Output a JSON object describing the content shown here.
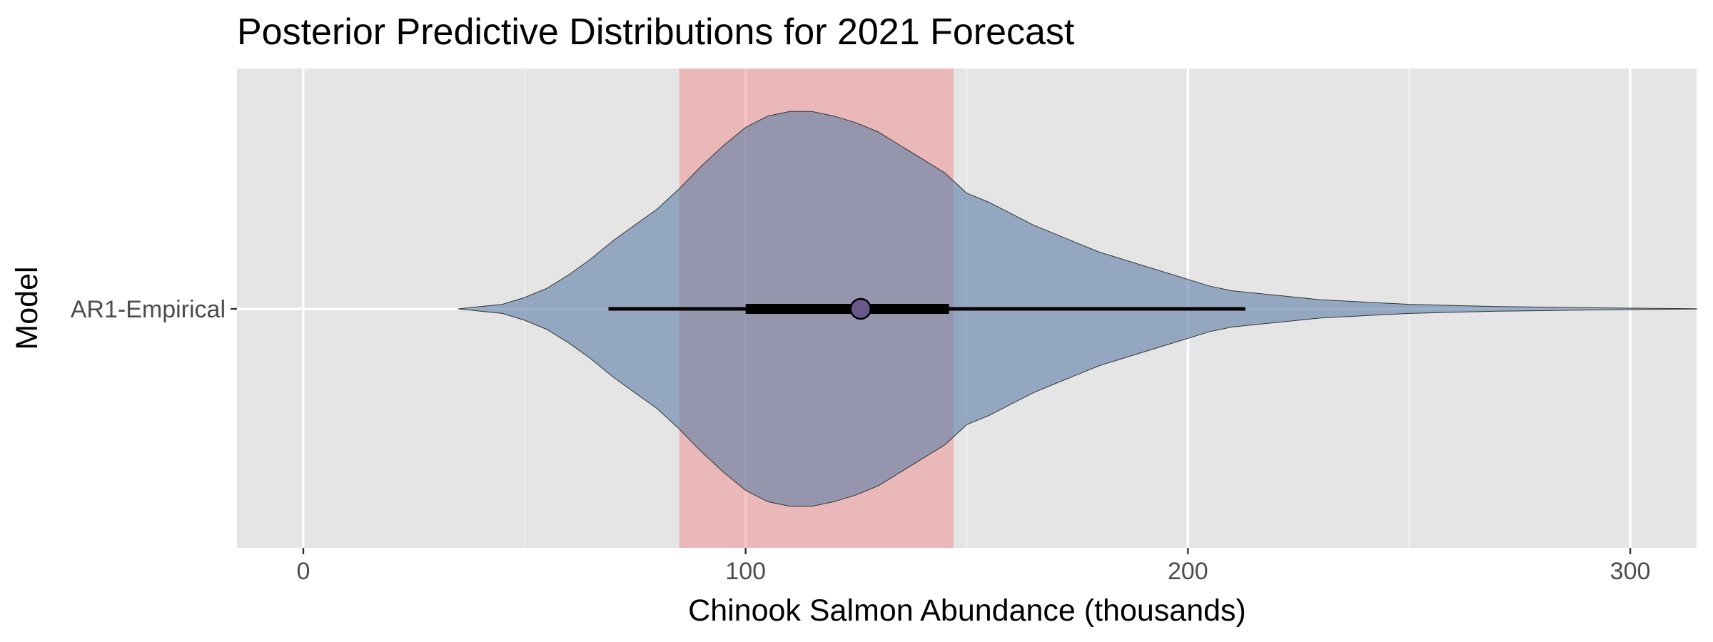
{
  "chart_data": {
    "type": "violin",
    "title": "Posterior Predictive Distributions for 2021 Forecast",
    "xlabel": "Chinook Salmon Abundance (thousands)",
    "ylabel": "Model",
    "xlim": [
      -15,
      315
    ],
    "x_ticks": [
      0,
      100,
      200,
      300
    ],
    "x_tick_labels": [
      "0",
      "100",
      "200",
      "300"
    ],
    "x_minor_gridlines": [
      50,
      150,
      250
    ],
    "grid": true,
    "legend": "none",
    "panel_background": "#e5e5e5",
    "categories": [
      "AR1-Empirical"
    ],
    "shaded_interval": {
      "from": 85,
      "to": 147,
      "color": "#f08080",
      "opacity": 0.45
    },
    "series": [
      {
        "name": "AR1-Empirical",
        "fill": "#5b7fa6",
        "fill_opacity": 0.6,
        "density_profile": [
          [
            35,
            0.0
          ],
          [
            45,
            0.02
          ],
          [
            50,
            0.05
          ],
          [
            55,
            0.09
          ],
          [
            60,
            0.15
          ],
          [
            65,
            0.22
          ],
          [
            70,
            0.3
          ],
          [
            75,
            0.37
          ],
          [
            80,
            0.44
          ],
          [
            85,
            0.53
          ],
          [
            90,
            0.63
          ],
          [
            95,
            0.72
          ],
          [
            100,
            0.8
          ],
          [
            105,
            0.85
          ],
          [
            110,
            0.87
          ],
          [
            115,
            0.87
          ],
          [
            120,
            0.85
          ],
          [
            125,
            0.82
          ],
          [
            130,
            0.78
          ],
          [
            135,
            0.72
          ],
          [
            140,
            0.66
          ],
          [
            145,
            0.6
          ],
          [
            150,
            0.51
          ],
          [
            155,
            0.47
          ],
          [
            160,
            0.42
          ],
          [
            165,
            0.37
          ],
          [
            170,
            0.33
          ],
          [
            175,
            0.29
          ],
          [
            180,
            0.25
          ],
          [
            185,
            0.22
          ],
          [
            190,
            0.19
          ],
          [
            195,
            0.16
          ],
          [
            200,
            0.13
          ],
          [
            205,
            0.1
          ],
          [
            210,
            0.08
          ],
          [
            220,
            0.06
          ],
          [
            230,
            0.04
          ],
          [
            240,
            0.03
          ],
          [
            250,
            0.02
          ],
          [
            260,
            0.015
          ],
          [
            270,
            0.01
          ],
          [
            280,
            0.008
          ],
          [
            290,
            0.005
          ],
          [
            300,
            0.003
          ],
          [
            315,
            0.001
          ]
        ],
        "median": 126,
        "interval_50": [
          100,
          146
        ],
        "interval_95": [
          69,
          213
        ]
      }
    ]
  }
}
